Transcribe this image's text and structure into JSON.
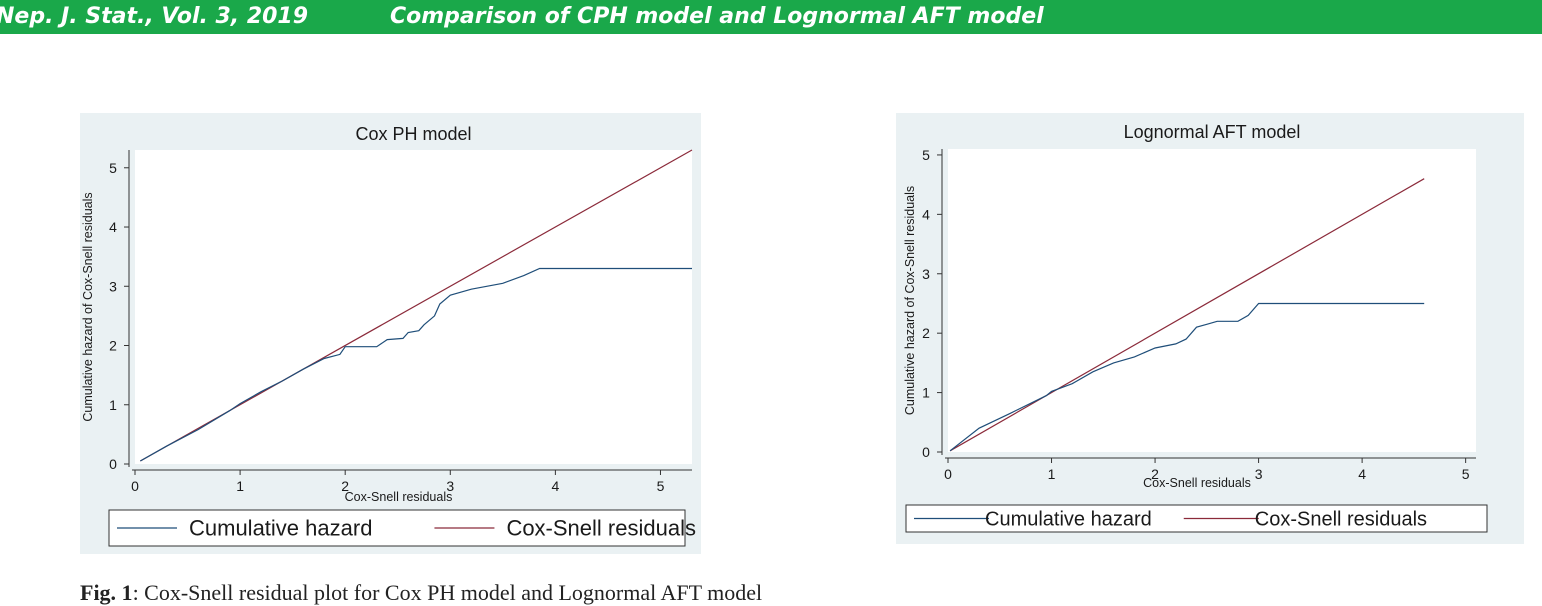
{
  "header": {
    "journal": "Nep. J. Stat., Vol. 3, 2019",
    "title": "Comparison of CPH model and Lognormal AFT model"
  },
  "caption": {
    "label": "Fig. 1",
    "text": ": Cox-Snell residual plot for Cox PH model and Lognormal AFT model"
  },
  "colors": {
    "header_bg": "#1aa84a",
    "panel_bg": "#eaf1f3",
    "cumulative_hazard": "#1f4e79",
    "cox_snell_line": "#8b2a3a"
  },
  "chart_data": [
    {
      "type": "line",
      "title": "Cox PH model",
      "xlabel": "Cox-Snell residuals",
      "ylabel": "Cumulative hazard of Cox-Snell residuals",
      "xlim": [
        0,
        5.3
      ],
      "ylim": [
        0,
        5.3
      ],
      "xticks": [
        "0",
        "1",
        "2",
        "3",
        "4",
        "5"
      ],
      "yticks": [
        "0",
        "1",
        "2",
        "3",
        "4",
        "5"
      ],
      "grid": false,
      "legend": "bottom",
      "series": [
        {
          "name": "Cumulative hazard",
          "x": [
            0.05,
            0.3,
            0.6,
            0.9,
            1.0,
            1.2,
            1.4,
            1.6,
            1.8,
            1.95,
            2.0,
            2.3,
            2.4,
            2.55,
            2.6,
            2.7,
            2.75,
            2.85,
            2.9,
            3.0,
            3.2,
            3.5,
            3.7,
            3.85,
            4.2,
            5.3
          ],
          "y": [
            0.05,
            0.3,
            0.58,
            0.9,
            1.02,
            1.22,
            1.4,
            1.6,
            1.78,
            1.85,
            1.98,
            1.98,
            2.1,
            2.12,
            2.22,
            2.25,
            2.35,
            2.5,
            2.7,
            2.85,
            2.95,
            3.05,
            3.18,
            3.3,
            3.3,
            3.3
          ]
        },
        {
          "name": "Cox-Snell residuals",
          "x": [
            0.05,
            5.3
          ],
          "y": [
            0.05,
            5.3
          ]
        }
      ]
    },
    {
      "type": "line",
      "title": "Lognormal AFT model",
      "xlabel": "Cox-Snell residuals",
      "ylabel": "Cumulative hazard of Cox-Snell residuals",
      "xlim": [
        0,
        5.1
      ],
      "ylim": [
        0,
        5.1
      ],
      "xticks": [
        "0",
        "1",
        "2",
        "3",
        "4",
        "5"
      ],
      "yticks": [
        "0",
        "1",
        "2",
        "3",
        "4",
        "5"
      ],
      "grid": false,
      "legend": "bottom",
      "series": [
        {
          "name": "Cumulative hazard",
          "x": [
            0.02,
            0.3,
            0.6,
            0.95,
            1.0,
            1.2,
            1.4,
            1.6,
            1.8,
            2.0,
            2.2,
            2.3,
            2.4,
            2.5,
            2.6,
            2.8,
            2.9,
            3.0,
            3.5,
            4.6
          ],
          "y": [
            0.02,
            0.4,
            0.65,
            0.95,
            1.02,
            1.15,
            1.35,
            1.5,
            1.6,
            1.75,
            1.82,
            1.9,
            2.1,
            2.15,
            2.2,
            2.2,
            2.3,
            2.5,
            2.5,
            2.5
          ]
        },
        {
          "name": "Cox-Snell residuals",
          "x": [
            0.02,
            4.6
          ],
          "y": [
            0.02,
            4.6
          ]
        }
      ]
    }
  ]
}
